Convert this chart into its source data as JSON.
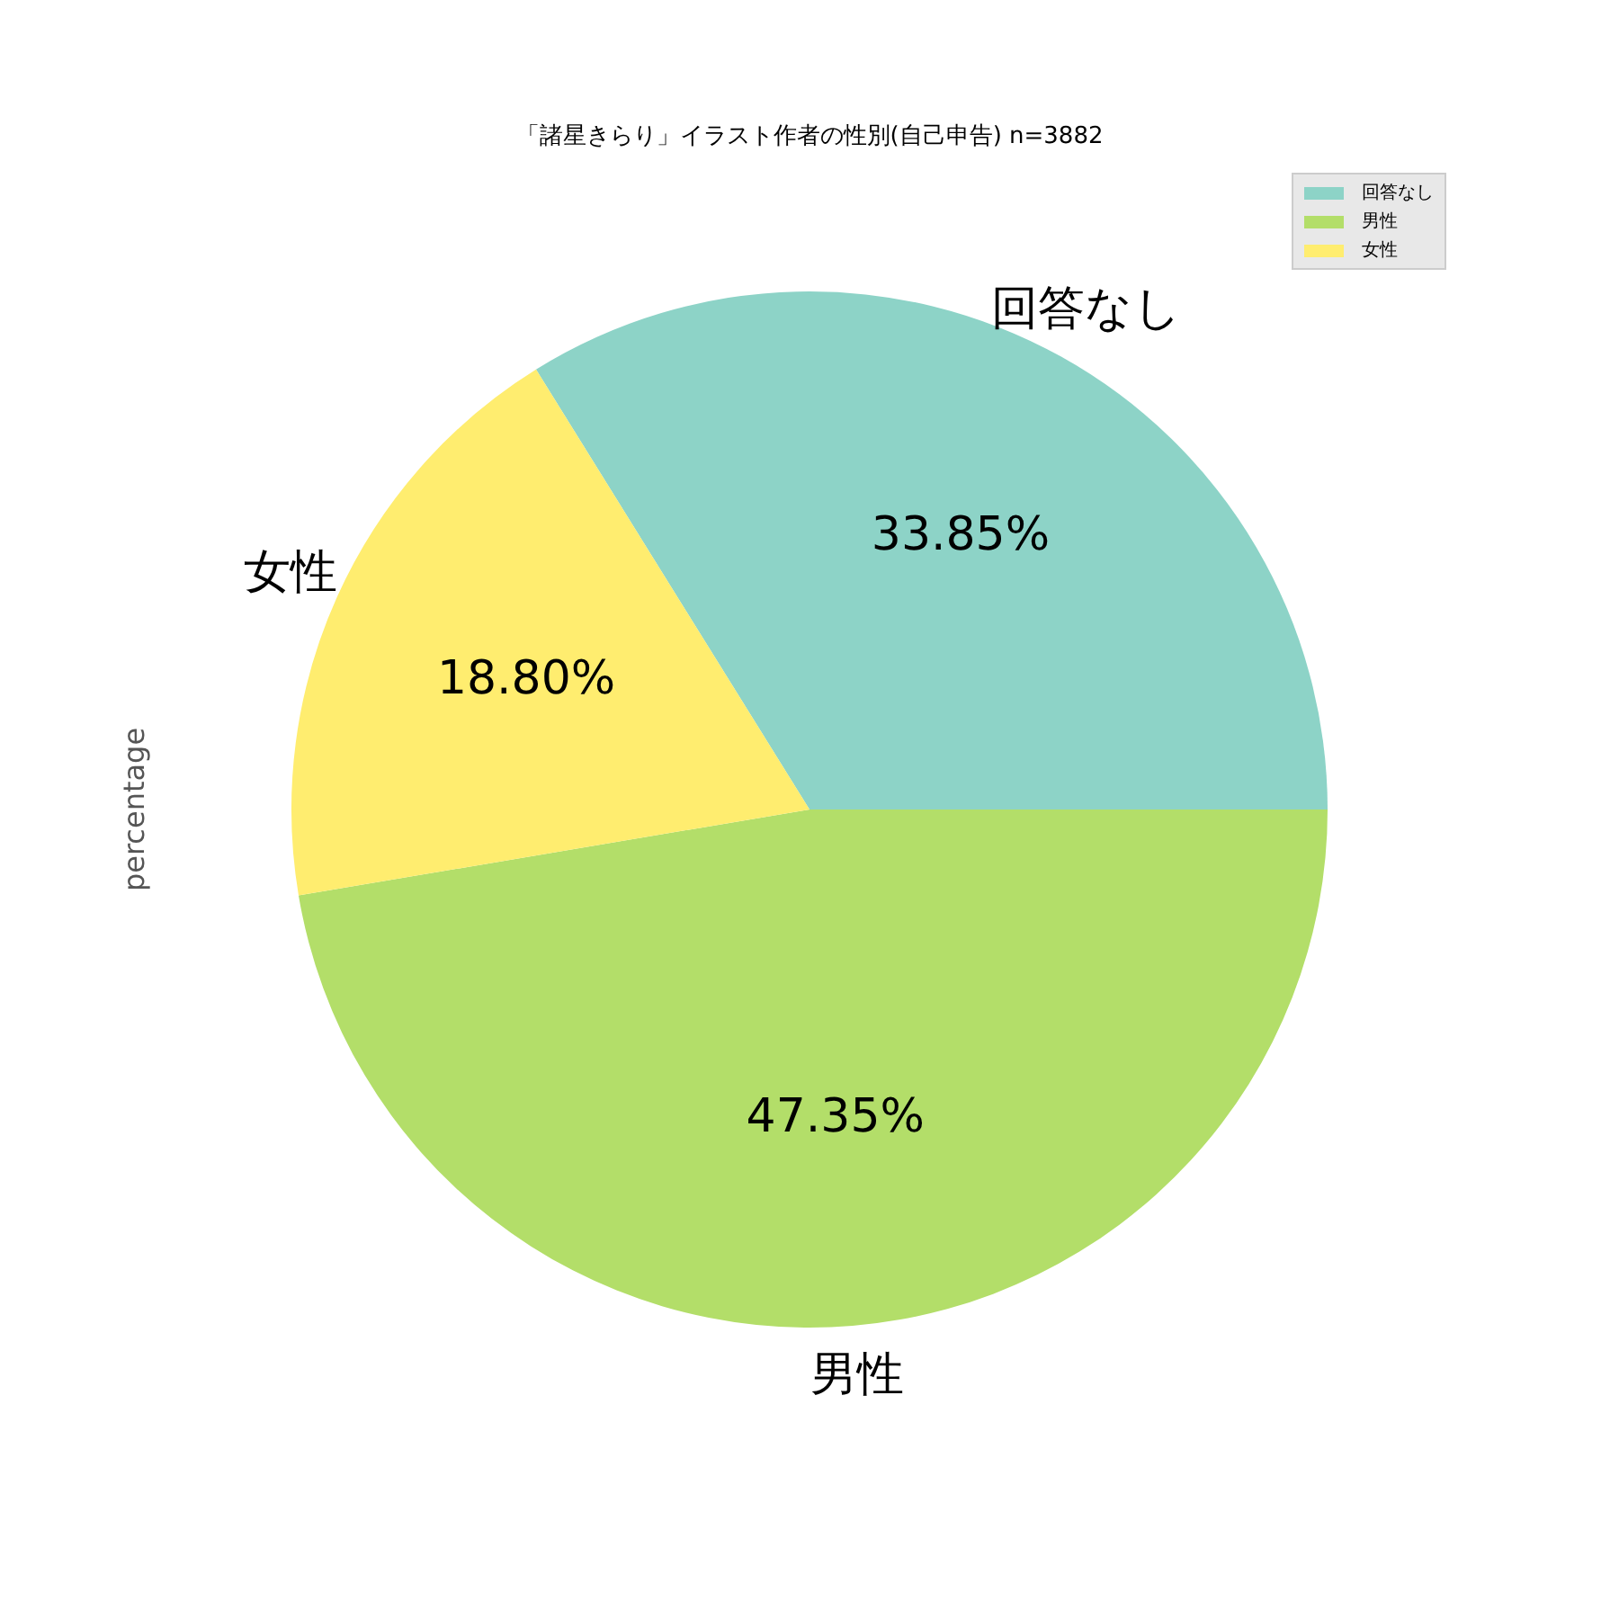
{
  "chart_data": {
    "type": "pie",
    "title": "「諸星きらり」イラスト作者の性別(自己申告) n=3882",
    "ylabel": "percentage",
    "categories": [
      "回答なし",
      "男性",
      "女性"
    ],
    "values": [
      33.85,
      47.35,
      18.8
    ],
    "colors": [
      "#8dd3c7",
      "#b3de69",
      "#ffed6f"
    ],
    "value_labels": [
      "33.85%",
      "47.35%",
      "18.80%"
    ],
    "legend": "top right"
  }
}
